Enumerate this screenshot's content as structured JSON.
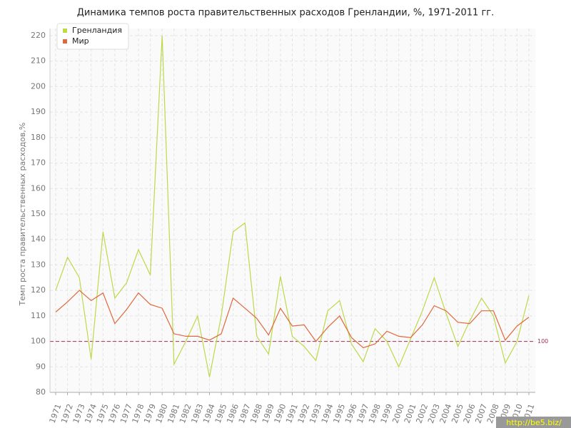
{
  "chart_data": {
    "type": "line",
    "title": "Динамика темпов роста правительственных расходов Гренландии, %, 1971-2011 гг.",
    "y_label": "Темп роста правительственных расходов,%",
    "categories": [
      "1971",
      "1972",
      "1973",
      "1974",
      "1975",
      "1976",
      "1977",
      "1978",
      "1979",
      "1980",
      "1981",
      "1982",
      "1983",
      "1984",
      "1985",
      "1986",
      "1987",
      "1988",
      "1989",
      "1990",
      "1991",
      "1992",
      "1993",
      "1994",
      "1995",
      "1996",
      "1997",
      "1998",
      "1999",
      "2000",
      "2001",
      "2002",
      "2003",
      "2004",
      "2005",
      "2006",
      "2007",
      "2008",
      "2009",
      "2010",
      "2011"
    ],
    "series": [
      {
        "name": "Гренландия",
        "color": "#bcd94a",
        "values": [
          120,
          133,
          125,
          93,
          143,
          117,
          123,
          136,
          126,
          220,
          91,
          100,
          110,
          86,
          110,
          143,
          146.5,
          102,
          95,
          125.5,
          102,
          98,
          92.5,
          112,
          116,
          99,
          92,
          105,
          100,
          90,
          101,
          112,
          125,
          111,
          98,
          108,
          117,
          110,
          91.5,
          100,
          118
        ]
      },
      {
        "name": "Мир",
        "color": "#e0683c",
        "values": [
          111.5,
          115.5,
          120,
          116,
          119,
          107,
          112.5,
          119,
          114.5,
          113,
          103,
          102,
          102,
          100.5,
          103,
          117,
          113,
          109,
          102.5,
          113,
          106,
          106.5,
          100,
          105.5,
          110,
          101.5,
          97.5,
          99,
          104,
          102,
          101.5,
          106.5,
          114,
          112,
          107.5,
          107,
          112,
          112,
          100.5,
          106,
          109.5
        ]
      }
    ],
    "reference_line": 100,
    "ylim": [
      80,
      220
    ],
    "yticks": [
      80,
      90,
      100,
      110,
      120,
      130,
      140,
      150,
      160,
      170,
      180,
      190,
      200,
      210,
      220
    ],
    "grid": true,
    "legend": "top-left",
    "watermark": "http://be5.biz/"
  }
}
